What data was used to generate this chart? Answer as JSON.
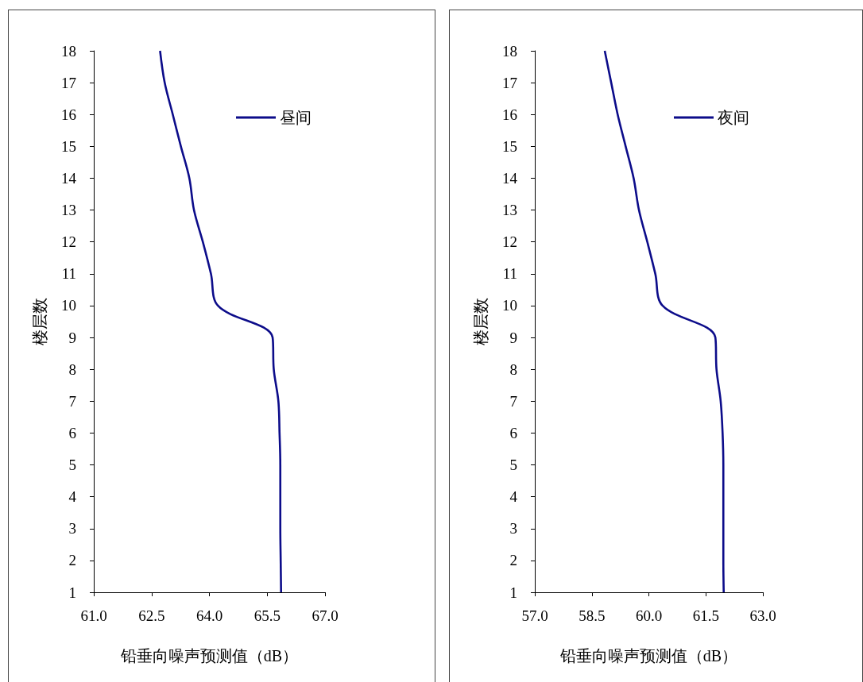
{
  "chart_data": [
    {
      "type": "line",
      "xlabel": "铅垂向噪声预测值（dB）",
      "ylabel": "楼层数",
      "xlim": [
        61,
        67
      ],
      "xticks": [
        {
          "value": 61,
          "label": "61.0"
        },
        {
          "value": 62.5,
          "label": "62.5"
        },
        {
          "value": 64,
          "label": "64.0"
        },
        {
          "value": 65.5,
          "label": "65.5"
        },
        {
          "value": 67,
          "label": "67.0"
        }
      ],
      "ylim": [
        1,
        18
      ],
      "yticks": [
        1,
        2,
        3,
        4,
        5,
        6,
        7,
        8,
        9,
        10,
        11,
        12,
        13,
        14,
        15,
        16,
        17,
        18
      ],
      "legend": "top right",
      "grid": false,
      "marker": "none",
      "line_style": "solid",
      "series": [
        {
          "name": "昼间",
          "color": "#0c0c8a",
          "x": [
            65.86,
            65.85,
            65.84,
            65.84,
            65.84,
            65.82,
            65.79,
            65.67,
            65.64,
            64.22,
            64.04,
            63.83,
            63.6,
            63.48,
            63.26,
            63.05,
            62.84,
            62.72
          ],
          "values": [
            1,
            2,
            3,
            4,
            5,
            6,
            7,
            8,
            9,
            10,
            11,
            12,
            13,
            14,
            15,
            16,
            17,
            18
          ]
        }
      ]
    },
    {
      "type": "line",
      "xlabel": "铅垂向噪声预测值（dB）",
      "ylabel": "楼层数",
      "xlim": [
        57,
        63
      ],
      "xticks": [
        {
          "value": 57,
          "label": "57.0"
        },
        {
          "value": 58.5,
          "label": "58.5"
        },
        {
          "value": 60,
          "label": "60.0"
        },
        {
          "value": 61.5,
          "label": "61.5"
        },
        {
          "value": 63,
          "label": "63.0"
        }
      ],
      "ylim": [
        1,
        18
      ],
      "yticks": [
        1,
        2,
        3,
        4,
        5,
        6,
        7,
        8,
        9,
        10,
        11,
        12,
        13,
        14,
        15,
        16,
        17,
        18
      ],
      "legend": "top right",
      "grid": false,
      "marker": "none",
      "line_style": "solid",
      "series": [
        {
          "name": "夜间",
          "color": "#0c0c8a",
          "x": [
            61.97,
            61.96,
            61.96,
            61.96,
            61.96,
            61.94,
            61.89,
            61.78,
            61.75,
            60.36,
            60.17,
            59.96,
            59.74,
            59.6,
            59.39,
            59.18,
            59.01,
            58.84
          ],
          "values": [
            1,
            2,
            3,
            4,
            5,
            6,
            7,
            8,
            9,
            10,
            11,
            12,
            13,
            14,
            15,
            16,
            17,
            18
          ]
        }
      ]
    }
  ]
}
